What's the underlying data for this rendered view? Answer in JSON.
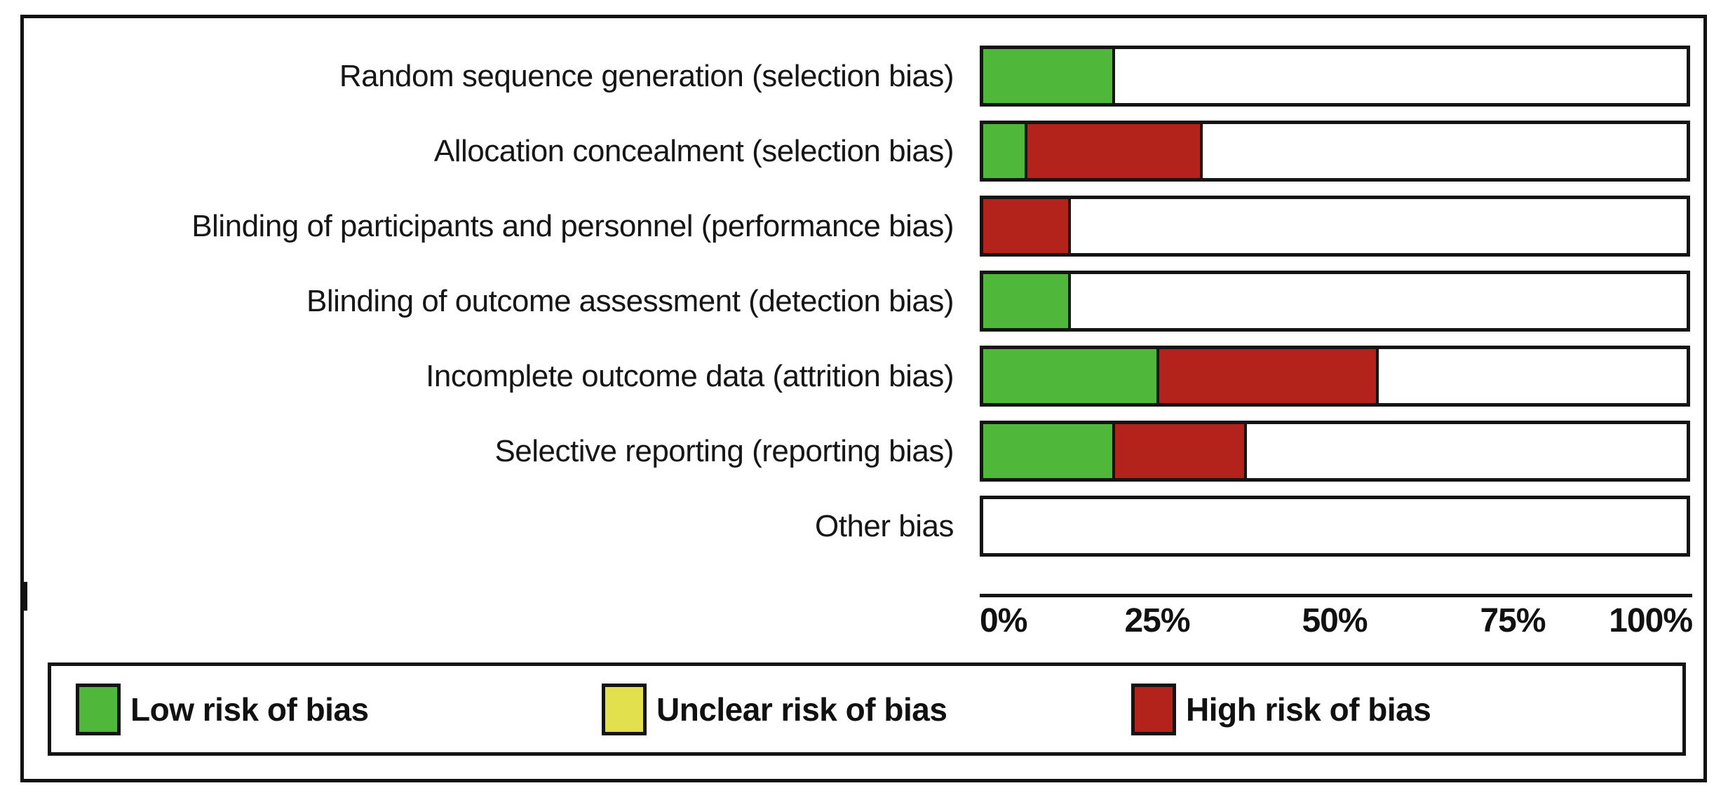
{
  "chart_data": {
    "type": "bar",
    "orientation": "horizontal-stacked",
    "rows": [
      {
        "label": "Random sequence generation (selection bias)",
        "low_pct": 18.75,
        "unclear_pct": 0,
        "high_pct": 0
      },
      {
        "label": "Allocation concealment (selection bias)",
        "low_pct": 6.25,
        "unclear_pct": 0,
        "high_pct": 25
      },
      {
        "label": "Blinding of participants and personnel (performance bias)",
        "low_pct": 0,
        "unclear_pct": 0,
        "high_pct": 12.5
      },
      {
        "label": "Blinding of outcome assessment (detection bias)",
        "low_pct": 12.5,
        "unclear_pct": 0,
        "high_pct": 0
      },
      {
        "label": "Incomplete outcome data (attrition bias)",
        "low_pct": 25,
        "unclear_pct": 0,
        "high_pct": 31.25
      },
      {
        "label": "Selective reporting (reporting bias)",
        "low_pct": 18.75,
        "unclear_pct": 0,
        "high_pct": 18.75
      },
      {
        "label": "Other bias",
        "low_pct": 0,
        "unclear_pct": 0,
        "high_pct": 0
      }
    ],
    "axis": {
      "range": [
        0,
        100
      ],
      "ticks": [
        "0%",
        "25%",
        "50%",
        "75%",
        "100%"
      ]
    },
    "colors": {
      "low": "#4FB83B",
      "unclear": "#E2E14D",
      "high": "#B3231B"
    },
    "legend": [
      {
        "label": "Low risk of bias"
      },
      {
        "label": "Unclear risk of bias"
      },
      {
        "label": "High risk of bias"
      }
    ]
  }
}
